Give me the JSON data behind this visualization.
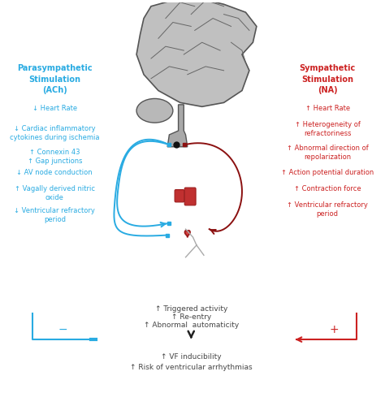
{
  "background_color": "#ffffff",
  "cyan_color": "#29ABE2",
  "red_color": "#CC2222",
  "dark_red": "#8B1010",
  "gray_color": "#444444",
  "brain_fill": "#c0c0c0",
  "brain_edge": "#555555",
  "heart_fill": "#d94040",
  "heart_edge": "#9b1c1c",
  "title_parasympathetic": "Parasympathetic\nStimulation\n(ACh)",
  "title_sympathetic": "Sympathetic\nStimulation\n(NA)",
  "parasympathetic_items": [
    "↓ Heart Rate",
    "↓ Cardiac inflammatory\ncytokines during ischemia",
    "↑ Connexin 43\n↑ Gap junctions",
    "↓ AV node conduction",
    "↑ Vagally derived nitric\noxide",
    "↓ Ventricular refractory\nperiod"
  ],
  "sympathetic_items": [
    "↑ Heart Rate",
    "↑ Heterogeneity of\nrefractoriness",
    "↑ Abnormal direction of\nrepolarization",
    "↑ Action potential duration",
    "↑ Contraction force",
    "↑ Ventricular refractory\nperiod"
  ],
  "bottom_center_items": [
    "↑ Triggered activity",
    "↑ Re-entry",
    "↑ Abnormal  automaticity"
  ],
  "final_items": [
    "↑ VF inducibility",
    "↑ Risk of ventricular arrhythmias"
  ],
  "fig_width": 4.74,
  "fig_height": 5.0,
  "dpi": 100
}
